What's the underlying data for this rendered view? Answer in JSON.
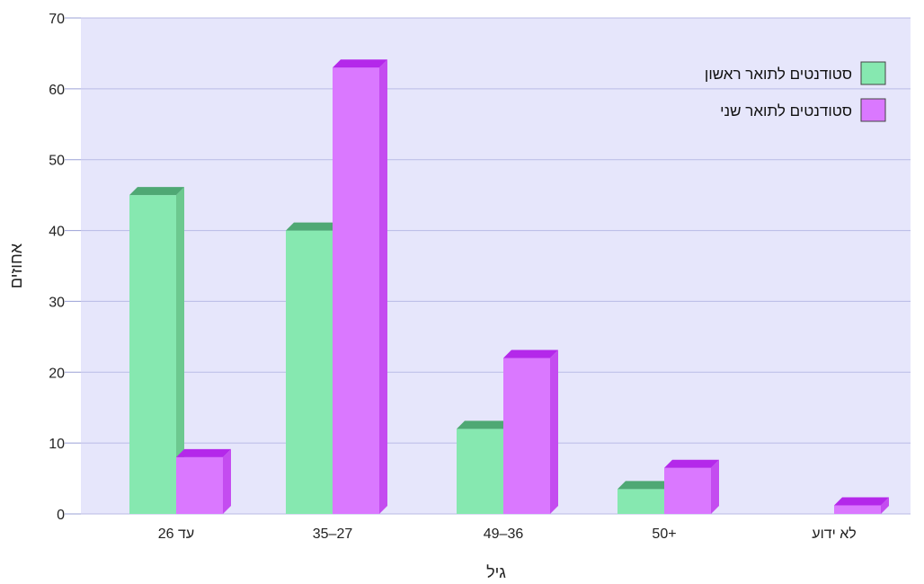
{
  "chart_data": {
    "type": "bar",
    "title": "",
    "xlabel": "גיל",
    "ylabel": "אחוזים",
    "ylim": [
      0,
      70
    ],
    "yticks": [
      0,
      10,
      20,
      30,
      40,
      50,
      60,
      70
    ],
    "grid": true,
    "legend_position": "top-right",
    "categories": [
      "עד 26",
      "35–27",
      "49–36",
      "50+",
      "לא ידוע"
    ],
    "series": [
      {
        "name": "סטודנטים לתואר ראשון",
        "values": [
          45,
          40,
          12,
          3.5,
          0
        ],
        "color": "#86e8b0",
        "side": "#6cc98f",
        "top": "#4fa874"
      },
      {
        "name": "סטודנטים לתואר שני",
        "values": [
          8,
          63,
          22,
          6.5,
          1.2
        ],
        "color": "#da78ff",
        "side": "#c44cf0",
        "top": "#b428ea"
      }
    ],
    "plot_background": "#e6e6fb",
    "grid_color": "#b9bbe6"
  }
}
